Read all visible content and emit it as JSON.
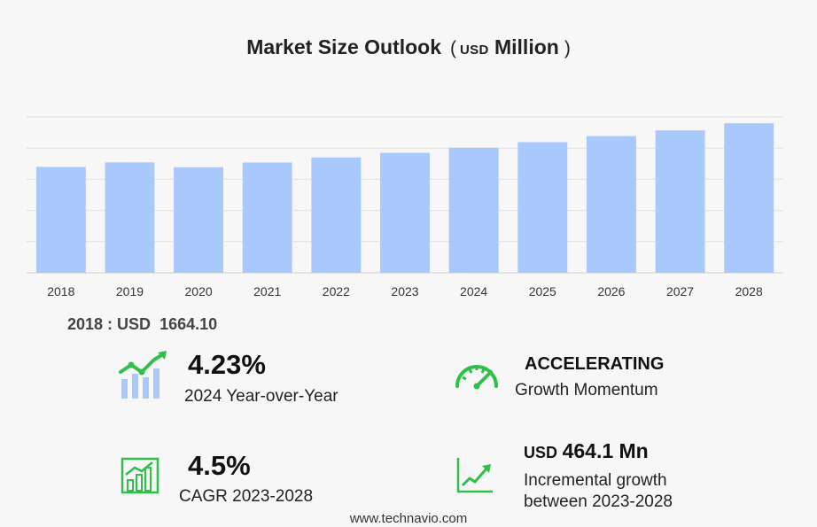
{
  "header": {
    "title": "Market Size Outlook",
    "unit_open": "(",
    "unit_currency": "USD",
    "unit_scale": "Million",
    "unit_close": ")"
  },
  "chart_data": {
    "type": "bar",
    "categories": [
      "2018",
      "2019",
      "2020",
      "2021",
      "2022",
      "2023",
      "2024",
      "2025",
      "2026",
      "2027",
      "2028"
    ],
    "values": [
      1664.1,
      1736,
      1659,
      1733,
      1813,
      1886,
      1966,
      2054,
      2149,
      2238,
      2350
    ],
    "ylim": [
      0,
      2450
    ],
    "grid": true,
    "bar_color": "#a9c8fb"
  },
  "base_value": {
    "label": "2018 : USD",
    "value": "1664.10"
  },
  "stats": {
    "yoy": {
      "value": "4.23%",
      "label": "2024 Year-over-Year",
      "icon": "bar-trend-icon"
    },
    "momentum": {
      "value": "ACCELERATING",
      "label": "Growth Momentum",
      "icon": "speedometer-icon"
    },
    "cagr": {
      "value": "4.5%",
      "label": "CAGR 2023-2028",
      "icon": "growth-bar-icon"
    },
    "incremental": {
      "currency": "USD",
      "value": "464.1 Mn",
      "label_line1": "Incremental growth",
      "label_line2": "between 2023-2028",
      "icon": "line-chart-icon"
    }
  },
  "colors": {
    "accent_green": "#2fbf4a",
    "bar": "#a9c8fb"
  },
  "footer": {
    "website": "www.technavio.com"
  }
}
